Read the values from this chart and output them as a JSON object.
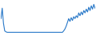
{
  "values": [
    38,
    60,
    28,
    12,
    10,
    9,
    9,
    9,
    9,
    9,
    9,
    9,
    9,
    9,
    9,
    9,
    9,
    9,
    9,
    9,
    9,
    9,
    9,
    9,
    9,
    9,
    9,
    9,
    9,
    9,
    9,
    9,
    9,
    9,
    9,
    9,
    9,
    9,
    9,
    9,
    9,
    9,
    9,
    9,
    9,
    9,
    9,
    9,
    9,
    9,
    12,
    16,
    22,
    30,
    38,
    32,
    40,
    34,
    42,
    38,
    44,
    40,
    50,
    44,
    52,
    46,
    55,
    50,
    58,
    52,
    62,
    55,
    65,
    58,
    68,
    60
  ],
  "line_color": "#2878c8",
  "line_width": 0.8,
  "background_color": "#ffffff"
}
